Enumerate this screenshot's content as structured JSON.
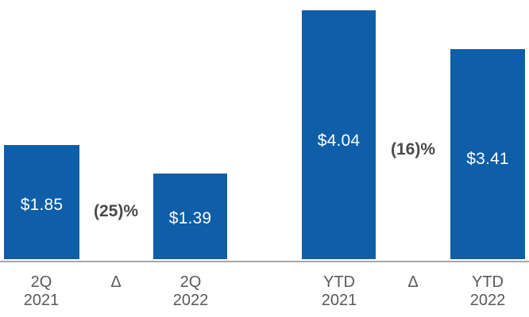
{
  "chart_data": {
    "type": "bar",
    "title": "",
    "xlabel": "",
    "ylabel": "",
    "ylim": [
      0,
      4.2
    ],
    "grid": false,
    "legend": false,
    "value_labels_inside_bars": true,
    "categories": [
      "2Q 2021",
      "2Q 2022",
      "YTD 2021",
      "YTD 2022"
    ],
    "values": [
      1.85,
      1.39,
      4.04,
      3.41
    ],
    "bars": [
      {
        "value": 1.85,
        "value_label": "$1.85",
        "cat_line1": "2Q",
        "cat_line2": "2021"
      },
      {
        "value": 1.39,
        "value_label": "$1.39",
        "cat_line1": "2Q",
        "cat_line2": "2022"
      },
      {
        "value": 4.04,
        "value_label": "$4.04",
        "cat_line1": "YTD",
        "cat_line2": "2021"
      },
      {
        "value": 3.41,
        "value_label": "$3.41",
        "cat_line1": "YTD",
        "cat_line2": "2022"
      }
    ],
    "deltas": [
      {
        "display": "(25)%",
        "percent": -25,
        "cat_label": "Δ"
      },
      {
        "display": "(16)%",
        "percent": -16,
        "cat_label": "Δ"
      }
    ],
    "bar_color": "#0e5ea8",
    "value_label_color": "#ffffff",
    "delta_label_color": "#4a4a4a",
    "category_label_color": "#595959",
    "axis_line_color": "#a6a6a6"
  }
}
